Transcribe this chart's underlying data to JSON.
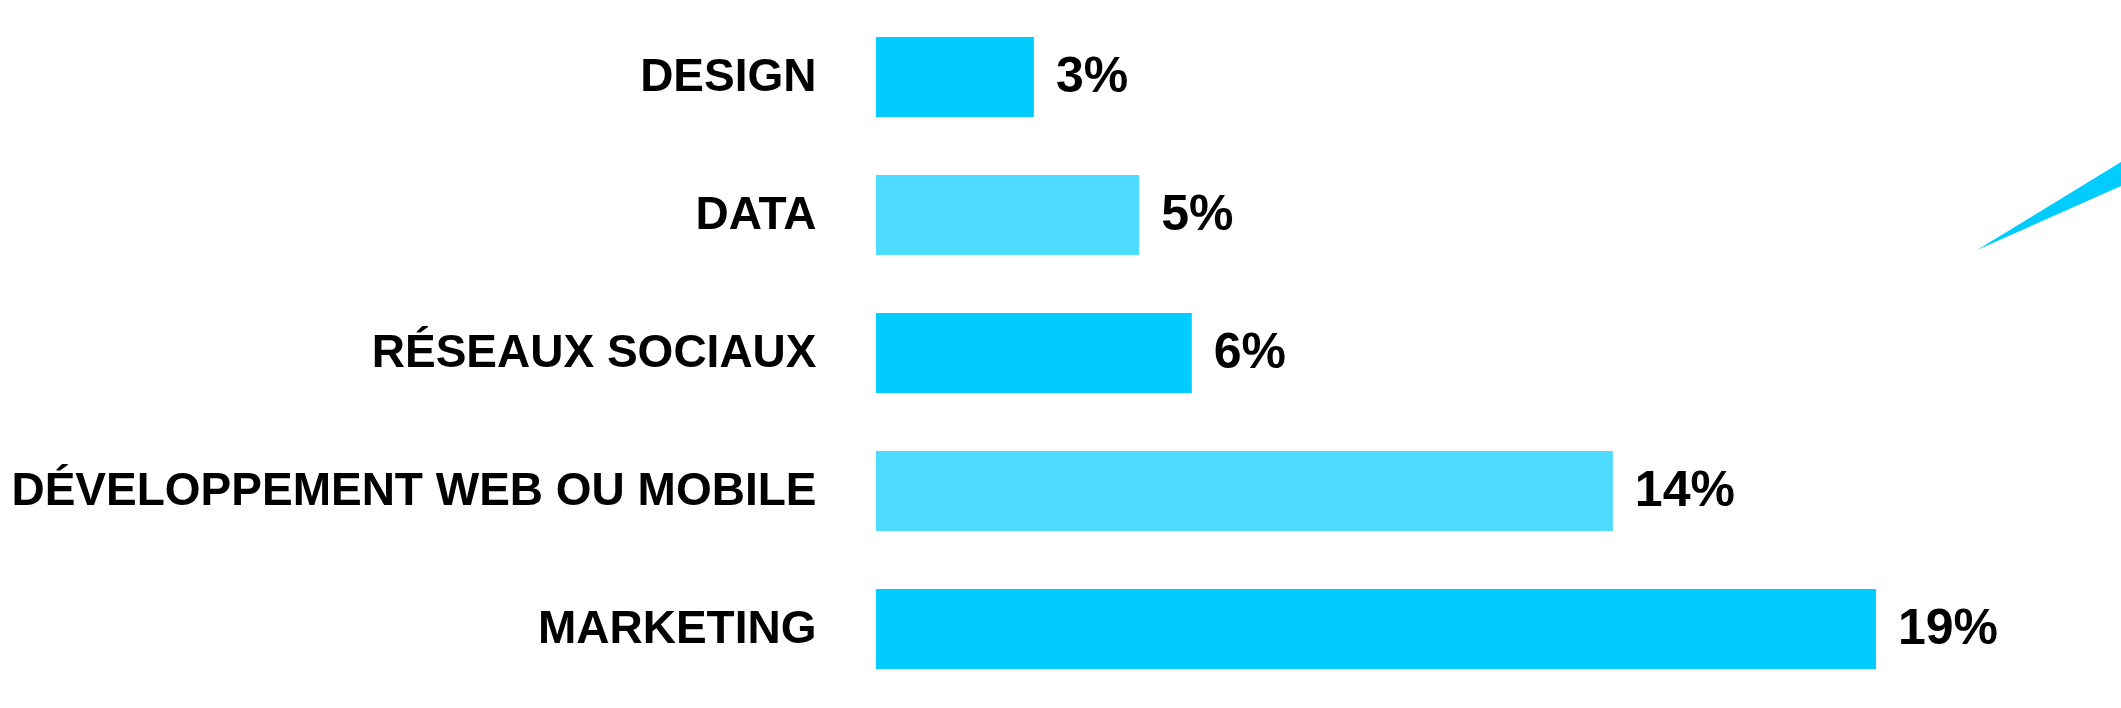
{
  "chart_data": {
    "type": "bar",
    "orientation": "horizontal",
    "categories": [
      "DESIGN",
      "DATA",
      "RÉSEAUX SOCIAUX",
      "DÉVELOPPEMENT WEB OU MOBILE",
      "MARKETING"
    ],
    "values": [
      3,
      5,
      6,
      14,
      19
    ],
    "colors": [
      "#00ccff",
      "#4ddbff",
      "#00ccff",
      "#4ddbff",
      "#00ccff"
    ],
    "value_labels": [
      "3%",
      "5%",
      "6%",
      "14%",
      "19%"
    ]
  }
}
